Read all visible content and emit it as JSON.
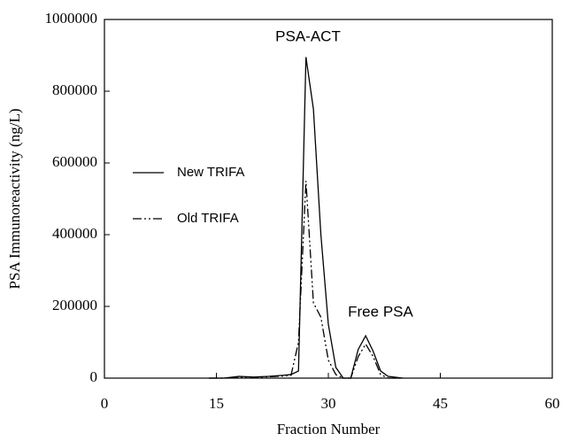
{
  "chart_data": {
    "type": "line",
    "xlabel": "Fraction Number",
    "ylabel": "PSA Immunoreactivity (ng/L)",
    "annotations": [
      "PSA-ACT",
      "Free PSA"
    ],
    "x": [
      14,
      16,
      18,
      20,
      22,
      24,
      25,
      26,
      27,
      28,
      29,
      30,
      31,
      32,
      33,
      34,
      35,
      36,
      37,
      38,
      40
    ],
    "series": [
      {
        "name": "New TRIFA",
        "color": "#000000",
        "style": "solid",
        "values": [
          0,
          0,
          5000,
          3000,
          5000,
          8000,
          10000,
          20000,
          895000,
          750000,
          400000,
          150000,
          30000,
          0,
          0,
          80000,
          118000,
          75000,
          20000,
          5000,
          0
        ]
      },
      {
        "name": "Old TRIFA",
        "color": "#000000",
        "style": "dashdot",
        "values": [
          0,
          0,
          3000,
          2000,
          4000,
          6000,
          8000,
          100000,
          550000,
          210000,
          170000,
          50000,
          10000,
          0,
          0,
          60000,
          95000,
          60000,
          10000,
          0,
          0
        ]
      }
    ],
    "xlim": [
      0,
      60
    ],
    "xticks": [
      0,
      15,
      30,
      45,
      60
    ],
    "ylim": [
      0,
      1000000
    ],
    "yticks": [
      0,
      200000,
      400000,
      600000,
      800000,
      1000000
    ]
  }
}
